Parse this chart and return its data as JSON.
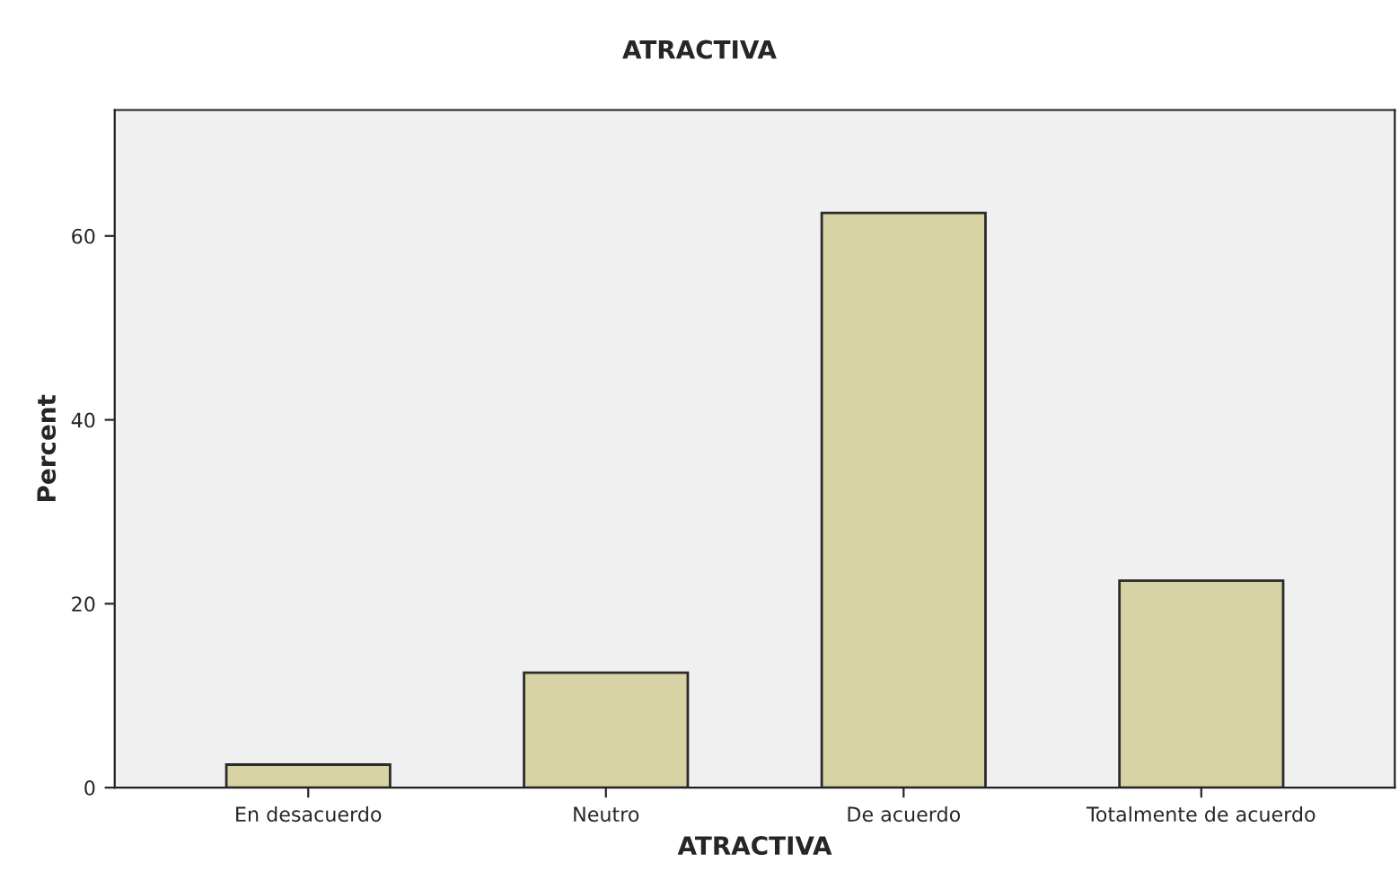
{
  "chart_data": {
    "type": "bar",
    "title": "ATRACTIVA",
    "xlabel": "ATRACTIVA",
    "ylabel": "Percent",
    "categories": [
      "En desacuerdo",
      "Neutro",
      "De acuerdo",
      "Totalmente de acuerdo"
    ],
    "values": [
      2.5,
      12.5,
      62.5,
      22.5
    ],
    "color": "#d8d3a4",
    "ylim": [
      0,
      73.7
    ],
    "yticks": [
      0,
      20,
      40,
      60
    ],
    "grid": false
  }
}
